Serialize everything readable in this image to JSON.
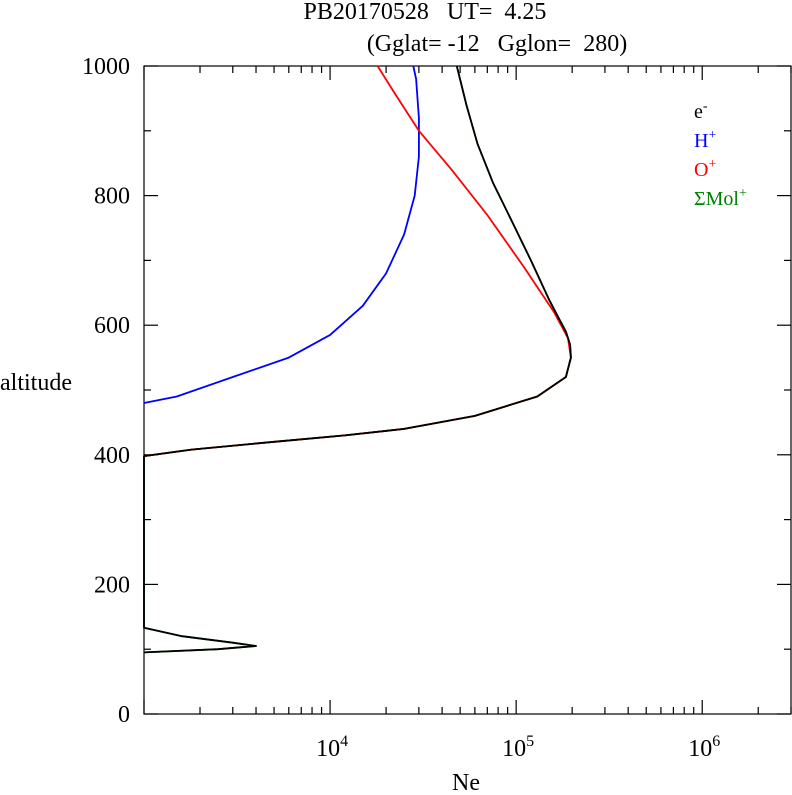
{
  "chart_data": {
    "type": "line",
    "title_line1": "PB20170528   UT=  4.25",
    "title_line2": "(Gglat= -12   Gglon=  280)",
    "xlabel": "Ne",
    "ylabel": "altitude",
    "xscale": "log",
    "xlim": [
      1000,
      3000000
    ],
    "ylim": [
      0,
      1000
    ],
    "y_ticks": [
      {
        "value": 0,
        "label": "0"
      },
      {
        "value": 200,
        "label": "200"
      },
      {
        "value": 400,
        "label": "400"
      },
      {
        "value": 600,
        "label": "600"
      },
      {
        "value": 800,
        "label": "800"
      },
      {
        "value": 1000,
        "label": "1000"
      }
    ],
    "x_ticks": [
      {
        "value": 10000,
        "base": "10",
        "exp": "4"
      },
      {
        "value": 100000,
        "base": "10",
        "exp": "5"
      },
      {
        "value": 1000000,
        "base": "10",
        "exp": "6"
      }
    ],
    "legend_position": "top-right",
    "series": [
      {
        "name": "Mol",
        "legend_prefix": "Σ",
        "legend_sup": "+",
        "color": "#008000",
        "points": [
          [
            1000,
            95
          ],
          [
            2500,
            100
          ],
          [
            4000,
            105
          ],
          [
            3000,
            110
          ],
          [
            1600,
            120
          ],
          [
            1000,
            133
          ],
          [
            1000,
            398
          ],
          [
            1800,
            408
          ],
          [
            5000,
            420
          ],
          [
            12000,
            430
          ],
          [
            25000,
            440
          ],
          [
            60000,
            460
          ],
          [
            130000,
            490
          ],
          [
            185000,
            520
          ],
          [
            197000,
            550
          ],
          [
            195000,
            570
          ],
          [
            185000,
            590
          ],
          [
            170000,
            610
          ],
          [
            150000,
            640
          ],
          [
            120000,
            700
          ],
          [
            95000,
            760
          ],
          [
            75000,
            820
          ],
          [
            62000,
            880
          ],
          [
            54000,
            940
          ],
          [
            48000,
            1000
          ]
        ]
      },
      {
        "name": "H",
        "legend_prefix": "",
        "legend_sup": "+",
        "color": "#0000ff",
        "points": [
          [
            1000,
            480
          ],
          [
            1500,
            490
          ],
          [
            3000,
            520
          ],
          [
            6000,
            550
          ],
          [
            10000,
            585
          ],
          [
            15000,
            630
          ],
          [
            20000,
            680
          ],
          [
            25000,
            740
          ],
          [
            28500,
            800
          ],
          [
            30000,
            860
          ],
          [
            30000,
            920
          ],
          [
            29000,
            980
          ],
          [
            28000,
            1000
          ]
        ]
      },
      {
        "name": "O",
        "legend_prefix": "",
        "legend_sup": "+",
        "color": "#ff0000",
        "points": [
          [
            1000,
            398
          ],
          [
            1800,
            408
          ],
          [
            5000,
            420
          ],
          [
            12000,
            430
          ],
          [
            25000,
            440
          ],
          [
            60000,
            460
          ],
          [
            130000,
            490
          ],
          [
            185000,
            520
          ],
          [
            197000,
            550
          ],
          [
            190000,
            580
          ],
          [
            160000,
            620
          ],
          [
            110000,
            690
          ],
          [
            70000,
            770
          ],
          [
            45000,
            840
          ],
          [
            30000,
            900
          ],
          [
            22000,
            960
          ],
          [
            18000,
            1000
          ]
        ]
      },
      {
        "name": "e",
        "legend_prefix": "",
        "legend_sup": "-",
        "color": "#000000",
        "points": [
          [
            1000,
            95
          ],
          [
            2500,
            100
          ],
          [
            4000,
            105
          ],
          [
            3000,
            110
          ],
          [
            1600,
            120
          ],
          [
            1000,
            133
          ],
          [
            1000,
            398
          ],
          [
            1800,
            408
          ],
          [
            5000,
            420
          ],
          [
            12000,
            430
          ],
          [
            25000,
            440
          ],
          [
            60000,
            460
          ],
          [
            130000,
            490
          ],
          [
            185000,
            520
          ],
          [
            197000,
            550
          ],
          [
            195000,
            570
          ],
          [
            185000,
            590
          ],
          [
            170000,
            610
          ],
          [
            150000,
            640
          ],
          [
            120000,
            700
          ],
          [
            95000,
            760
          ],
          [
            75000,
            820
          ],
          [
            62000,
            880
          ],
          [
            54000,
            940
          ],
          [
            48000,
            1000
          ]
        ]
      }
    ],
    "legend_order": [
      "e",
      "H",
      "O",
      "Mol"
    ]
  }
}
